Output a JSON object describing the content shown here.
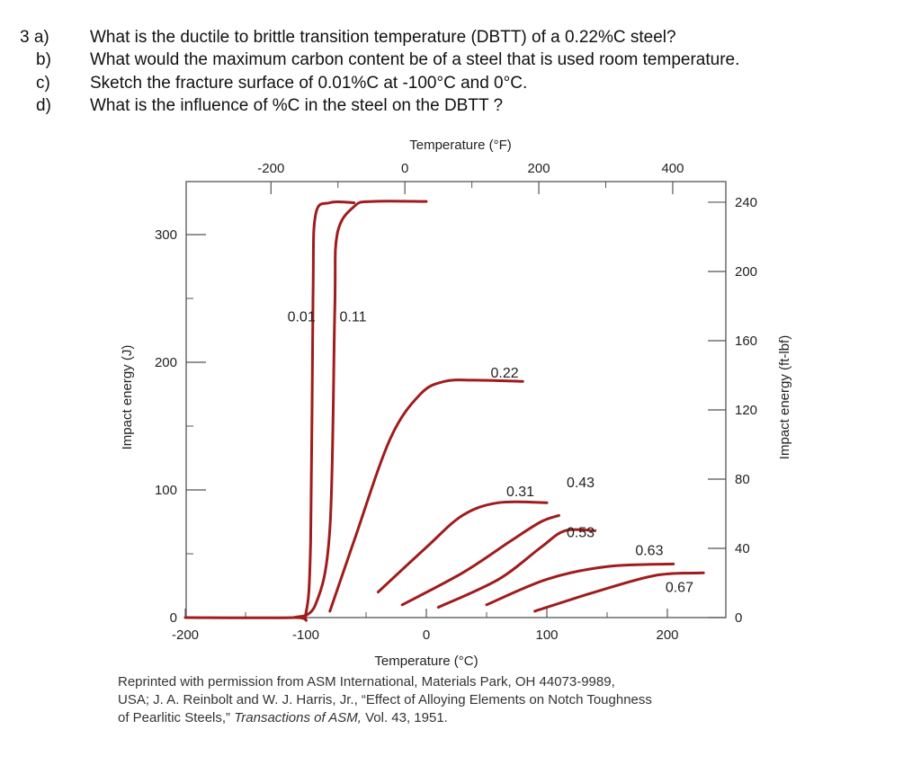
{
  "questions": [
    {
      "label": "3 a)",
      "text": "What is the ductile to brittle transition temperature (DBTT) of a 0.22%C steel?"
    },
    {
      "label": "b)",
      "text": "What would the maximum carbon content be of a steel that is used room temperature."
    },
    {
      "label": "c)",
      "text": "Sketch the fracture surface of 0.01%C at -100°C and 0°C."
    },
    {
      "label": "d)",
      "text": "What is the influence of %C in the steel on the DBTT ?"
    }
  ],
  "chart_data": {
    "type": "line",
    "xlabel": "Temperature (°C)",
    "ylabel": "Impact energy (J)",
    "top_xlabel": "Temperature (°F)",
    "right_ylabel": "Impact energy (ft-lbf)",
    "xlim": [
      -200,
      250
    ],
    "ylim": [
      0,
      340
    ],
    "x_ticks": [
      "-200",
      "-100",
      "0",
      "100",
      "200"
    ],
    "y_ticks": [
      "0",
      "100",
      "200",
      "300"
    ],
    "top_x_ticks": [
      "-200",
      "0",
      "200",
      "400"
    ],
    "right_y_ticks": [
      "0",
      "40",
      "80",
      "120",
      "160",
      "200",
      "240"
    ],
    "line_color": "#a01c1c",
    "series": [
      {
        "name": "0.01",
        "points": [
          [
            -200,
            0
          ],
          [
            -110,
            0
          ],
          [
            -100,
            3
          ],
          [
            -96,
            60
          ],
          [
            -94,
            250
          ],
          [
            -92,
            315
          ],
          [
            -80,
            325
          ],
          [
            -60,
            325
          ]
        ]
      },
      {
        "name": "0.11",
        "points": [
          [
            -110,
            0
          ],
          [
            -92,
            10
          ],
          [
            -80,
            70
          ],
          [
            -76,
            240
          ],
          [
            -74,
            300
          ],
          [
            -60,
            322
          ],
          [
            -45,
            326
          ],
          [
            0,
            326
          ]
        ]
      },
      {
        "name": "0.22",
        "points": [
          [
            -80,
            5
          ],
          [
            -60,
            60
          ],
          [
            -30,
            140
          ],
          [
            -5,
            175
          ],
          [
            15,
            185
          ],
          [
            40,
            186
          ],
          [
            80,
            185
          ]
        ]
      },
      {
        "name": "0.31",
        "points": [
          [
            -40,
            20
          ],
          [
            0,
            55
          ],
          [
            30,
            80
          ],
          [
            60,
            90
          ],
          [
            100,
            90
          ]
        ]
      },
      {
        "name": "0.43",
        "points": [
          [
            -20,
            10
          ],
          [
            30,
            35
          ],
          [
            70,
            60
          ],
          [
            95,
            75
          ],
          [
            110,
            80
          ]
        ]
      },
      {
        "name": "0.53",
        "points": [
          [
            10,
            8
          ],
          [
            60,
            30
          ],
          [
            95,
            55
          ],
          [
            115,
            68
          ],
          [
            140,
            68
          ]
        ]
      },
      {
        "name": "0.63",
        "points": [
          [
            50,
            10
          ],
          [
            100,
            30
          ],
          [
            150,
            40
          ],
          [
            205,
            42
          ]
        ]
      },
      {
        "name": "0.67",
        "points": [
          [
            90,
            5
          ],
          [
            140,
            20
          ],
          [
            190,
            33
          ],
          [
            230,
            35
          ]
        ]
      }
    ],
    "series_labels": [
      "0.01",
      "0.11",
      "0.22",
      "0.31",
      "0.43",
      "0.53",
      "0.63",
      "0.67"
    ]
  },
  "credit": {
    "line1": "Reprinted with permission from ASM International, Materials Park, OH 44073-9989,",
    "line2": "USA; J. A. Reinbolt and W. J. Harris, Jr., “Effect of Alloying Elements on Notch Toughness",
    "line3": "of Pearlitic Steels,” ",
    "journal": "Transactions of ASM,",
    "line3_end": " Vol. 43, 1951."
  }
}
